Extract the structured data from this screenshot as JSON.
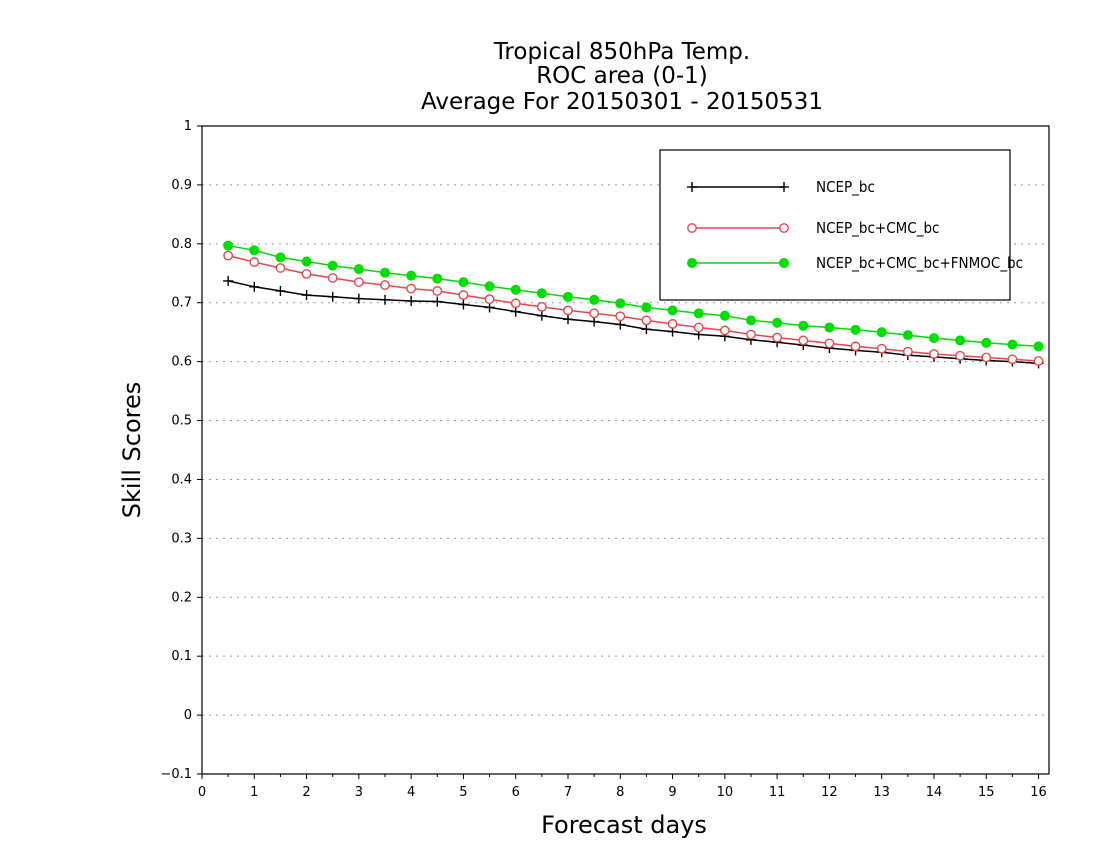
{
  "chart_data": {
    "type": "line",
    "title_lines": [
      "Tropical 850hPa Temp.",
      "ROC area (0-1)",
      "Average For 20150301 - 20150531"
    ],
    "xlabel": "Forecast days",
    "ylabel": "Skill Scores",
    "xlim": [
      0,
      16.2
    ],
    "ylim": [
      -0.1,
      1
    ],
    "xticks": [
      "0",
      "1",
      "2",
      "3",
      "4",
      "5",
      "6",
      "7",
      "8",
      "9",
      "10",
      "11",
      "12",
      "13",
      "14",
      "15",
      "16"
    ],
    "yticks": [
      "−0.1",
      "0",
      "0.1",
      "0.2",
      "0.3",
      "0.4",
      "0.5",
      "0.6",
      "0.7",
      "0.8",
      "0.9",
      "1"
    ],
    "grid": "horizontal dotted",
    "legend_position": "top-right",
    "x": [
      0.5,
      1,
      1.5,
      2,
      2.5,
      3,
      3.5,
      4,
      4.5,
      5,
      5.5,
      6,
      6.5,
      7,
      7.5,
      8,
      8.5,
      9,
      9.5,
      10,
      10.5,
      11,
      11.5,
      12,
      12.5,
      13,
      13.5,
      14,
      14.5,
      15,
      15.5,
      16
    ],
    "series": [
      {
        "name": "NCEP_bc",
        "color": "#000000",
        "marker": "plus",
        "values": [
          0.737,
          0.727,
          0.72,
          0.713,
          0.71,
          0.707,
          0.705,
          0.703,
          0.702,
          0.697,
          0.692,
          0.685,
          0.678,
          0.672,
          0.668,
          0.663,
          0.655,
          0.651,
          0.646,
          0.643,
          0.637,
          0.633,
          0.628,
          0.623,
          0.619,
          0.616,
          0.611,
          0.608,
          0.605,
          0.602,
          0.6,
          0.597
        ]
      },
      {
        "name": "NCEP_bc+CMC_bc",
        "color": "#e8474c",
        "marker": "open-circle",
        "values": [
          0.78,
          0.769,
          0.759,
          0.749,
          0.742,
          0.735,
          0.73,
          0.724,
          0.72,
          0.713,
          0.706,
          0.699,
          0.693,
          0.687,
          0.682,
          0.677,
          0.67,
          0.664,
          0.658,
          0.653,
          0.646,
          0.641,
          0.636,
          0.631,
          0.626,
          0.622,
          0.617,
          0.613,
          0.61,
          0.607,
          0.604,
          0.601
        ]
      },
      {
        "name": "NCEP_bc+CMC_bc+FNMOC_bc",
        "color": "#00dd00",
        "marker": "filled-circle",
        "values": [
          0.797,
          0.789,
          0.777,
          0.77,
          0.763,
          0.757,
          0.751,
          0.746,
          0.741,
          0.735,
          0.728,
          0.722,
          0.716,
          0.71,
          0.705,
          0.699,
          0.692,
          0.687,
          0.682,
          0.678,
          0.67,
          0.666,
          0.661,
          0.658,
          0.654,
          0.65,
          0.645,
          0.64,
          0.636,
          0.632,
          0.629,
          0.626
        ]
      }
    ]
  }
}
